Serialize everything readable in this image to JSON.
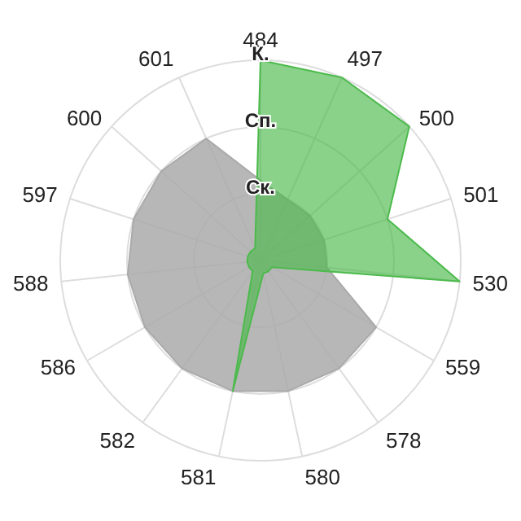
{
  "chart_data": {
    "type": "radar",
    "categories": [
      "484",
      "497",
      "500",
      "501",
      "530",
      "559",
      "578",
      "580",
      "581",
      "582",
      "586",
      "588",
      "597",
      "600",
      "601"
    ],
    "ylim": [
      0,
      3
    ],
    "yticks": [
      {
        "value": 1,
        "label": "Ск."
      },
      {
        "value": 2,
        "label": "Сп."
      },
      {
        "value": 3,
        "label": "К."
      }
    ],
    "grid": true,
    "series": [
      {
        "color": "#aaaaaa",
        "values": [
          1.2,
          1,
          1,
          1,
          1,
          2,
          2,
          2,
          2,
          2,
          2,
          2,
          2,
          2,
          2
        ]
      },
      {
        "color": "#4cba4c",
        "values": [
          3,
          3,
          3,
          2,
          3,
          0.2,
          0.2,
          0.2,
          2,
          0.2,
          0.2,
          0.2,
          0.2,
          0.2,
          0.2
        ]
      }
    ]
  }
}
